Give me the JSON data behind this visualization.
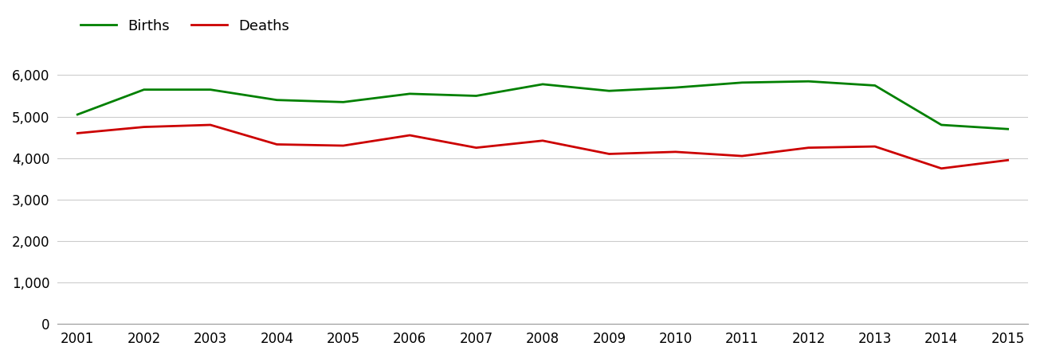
{
  "years": [
    2001,
    2002,
    2003,
    2004,
    2005,
    2006,
    2007,
    2008,
    2009,
    2010,
    2011,
    2012,
    2013,
    2014,
    2015
  ],
  "births": [
    5050,
    5650,
    5650,
    5400,
    5350,
    5550,
    5500,
    5780,
    5620,
    5700,
    5820,
    5850,
    5750,
    4800,
    4700
  ],
  "deaths": [
    4600,
    4750,
    4800,
    4330,
    4300,
    4550,
    4250,
    4420,
    4100,
    4150,
    4050,
    4250,
    4280,
    3750,
    3950
  ],
  "births_color": "#008000",
  "deaths_color": "#cc0000",
  "births_label": "Births",
  "deaths_label": "Deaths",
  "ylim": [
    0,
    6500
  ],
  "yticks": [
    0,
    1000,
    2000,
    3000,
    4000,
    5000,
    6000
  ],
  "ytick_labels": [
    "0",
    "1,000",
    "2,000",
    "3,000",
    "4,000",
    "5,000",
    "6,000"
  ],
  "line_width": 2.0,
  "background_color": "#ffffff",
  "grid_color": "#cccccc",
  "legend_fontsize": 13,
  "tick_fontsize": 12
}
